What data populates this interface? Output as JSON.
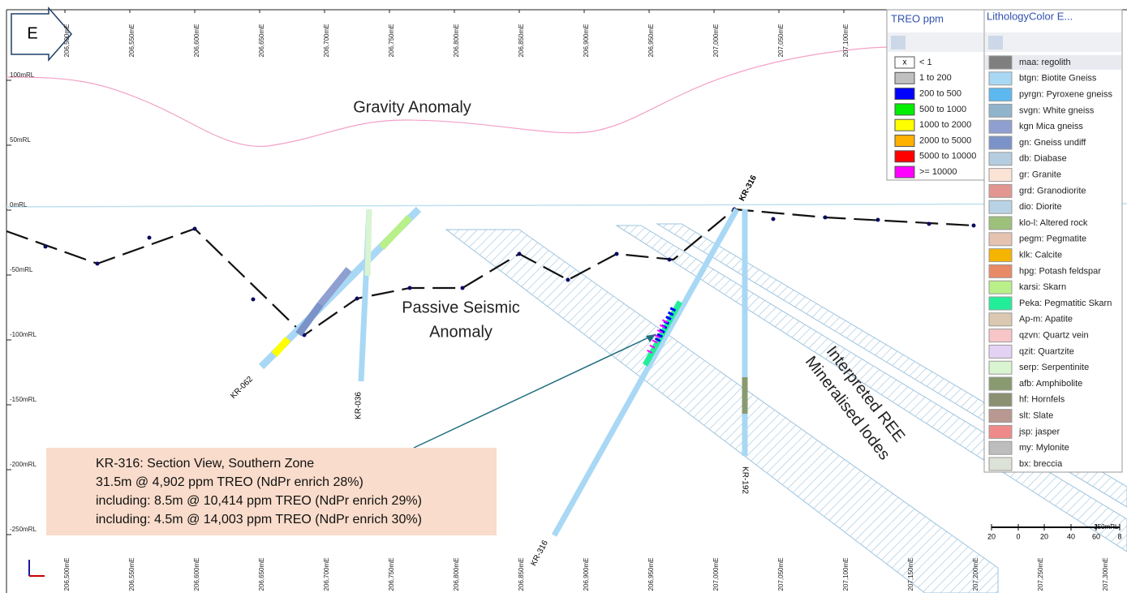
{
  "direction": "E",
  "top_eastings": [
    "206,500mE",
    "206,550mE",
    "206,600mE",
    "206,650mE",
    "206,700mE",
    "206,750mE",
    "206,800mE",
    "206,850mE",
    "206,900mE",
    "206,950mE",
    "207,000mE",
    "207,050mE",
    "207,100mE"
  ],
  "bottom_eastings": [
    "206,500mE",
    "206,550mE",
    "206,600mE",
    "206,650mE",
    "206,700mE",
    "206,750mE",
    "206,800mE",
    "206,850mE",
    "206,900mE",
    "206,950mE",
    "207,000mE",
    "207,050mE",
    "207,100mE",
    "207,150mE",
    "207,200mE",
    "207,250mE",
    "207,300mE"
  ],
  "rl_labels": [
    "100mRL",
    "50mRL",
    "0mRL",
    "-50mRL",
    "-100mRL",
    "-150mRL",
    "-200mRL",
    "-250mRL"
  ],
  "annotations": {
    "gravity": "Gravity Anomaly",
    "seismic_line1": "Passive Seismic",
    "seismic_line2": "Anomaly",
    "lodes_line1": "Interpreted REE",
    "lodes_line2": "Mineralised lodes"
  },
  "drillholes": {
    "kr062": "KR-062",
    "kr036": "KR-036",
    "kr316_top": "KR-316",
    "kr316_bottom": "KR-316",
    "kr192": "KR-192"
  },
  "info_box": [
    "KR-316: Section View, Southern Zone",
    "31.5m @ 4,902 ppm TREO (NdPr enrich 28%)",
    "including: 8.5m @ 10,414 ppm TREO (NdPr enrich 29%)",
    "including: 4.5m @ 14,003 ppm TREO (NdPr enrich 30%)"
  ],
  "treo_legend": {
    "title": "TREO ppm",
    "swatch_text": "x",
    "items": [
      {
        "label": "< 1",
        "color": "#ffffff"
      },
      {
        "label": "1 to 200",
        "color": "#c0c0c0"
      },
      {
        "label": "200 to 500",
        "color": "#0000ff"
      },
      {
        "label": "500 to 1000",
        "color": "#00ee00"
      },
      {
        "label": "1000 to 2000",
        "color": "#ffff00"
      },
      {
        "label": "2000 to 5000",
        "color": "#ffb000"
      },
      {
        "label": "5000 to 10000",
        "color": "#ff0000"
      },
      {
        "label": ">= 10000",
        "color": "#ff00ff"
      }
    ]
  },
  "lithology_legend": {
    "title": "LithologyColor E...",
    "items": [
      {
        "label": "maa: regolith",
        "color": "#7f7f7f"
      },
      {
        "label": "btgn: Biotite Gneiss",
        "color": "#a9d8f5"
      },
      {
        "label": "pyrgn: Pyroxene gneiss",
        "color": "#5cb8ee"
      },
      {
        "label": "svgn: White gneiss",
        "color": "#8fb4cc"
      },
      {
        "label": "kgn Mica gneiss",
        "color": "#8e9fd0"
      },
      {
        "label": "gn: Gneiss undiff",
        "color": "#7b93c8"
      },
      {
        "label": "db: Diabase",
        "color": "#b5cde0"
      },
      {
        "label": "gr: Granite",
        "color": "#fbe3d6"
      },
      {
        "label": "grd: Granodiorite",
        "color": "#e39690"
      },
      {
        "label": "dio: Diorite",
        "color": "#b9d3e6"
      },
      {
        "label": "klo-l: Altered rock",
        "color": "#9dc07a"
      },
      {
        "label": "pegm: Pegmatite",
        "color": "#e6c2b0"
      },
      {
        "label": "klk: Calcite",
        "color": "#f5b400"
      },
      {
        "label": "hpg: Potash feldspar",
        "color": "#e88a66"
      },
      {
        "label": "karsi: Skarn",
        "color": "#b9f08a"
      },
      {
        "label": "Peka: Pegmatitic Skarn",
        "color": "#22ee9a"
      },
      {
        "label": "Ap-m: Apatite",
        "color": "#dcc8b0"
      },
      {
        "label": "qzvn: Quartz vein",
        "color": "#f8c6c8"
      },
      {
        "label": "qzit: Quartzite",
        "color": "#e4d2f4"
      },
      {
        "label": "serp: Serpentinite",
        "color": "#d8f4d0"
      },
      {
        "label": "afb: Amphibolite",
        "color": "#8a9a70"
      },
      {
        "label": "hf: Hornfels",
        "color": "#8a9070"
      },
      {
        "label": "slt: Slate",
        "color": "#b89890"
      },
      {
        "label": "jsp: jasper",
        "color": "#f08a8a"
      },
      {
        "label": "my: Mylonite",
        "color": "#bdbdbd"
      },
      {
        "label": "bx: breccia",
        "color": "#dde2d8"
      }
    ]
  },
  "scale_bar": [
    "20",
    "0",
    "20",
    "40",
    "60",
    "8"
  ],
  "scale_rl": "-250mRL"
}
